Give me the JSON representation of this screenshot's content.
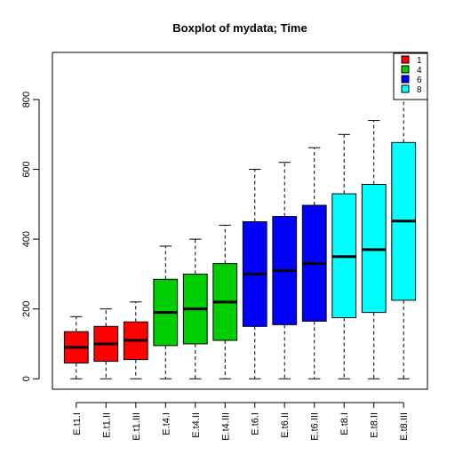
{
  "chart_data": {
    "type": "boxplot",
    "title": "Boxplot of mydata; Time",
    "xlabel": "",
    "ylabel": "",
    "ylim": [
      -30,
      935
    ],
    "yticks": [
      0,
      200,
      400,
      600,
      800
    ],
    "grid": false,
    "legend": {
      "placement": "top-right",
      "entries": [
        {
          "label": "1",
          "color": "#ff0000"
        },
        {
          "label": "4",
          "color": "#00cd00"
        },
        {
          "label": "6",
          "color": "#0000ff"
        },
        {
          "label": "8",
          "color": "#00ffff"
        }
      ]
    },
    "boxes": [
      {
        "label": "E.t1.I",
        "group": "1",
        "color": "#ff0000",
        "min": 0,
        "q1": 45,
        "median": 90,
        "q3": 135,
        "max": 178
      },
      {
        "label": "E.t1.II",
        "group": "1",
        "color": "#ff0000",
        "min": 0,
        "q1": 50,
        "median": 100,
        "q3": 150,
        "max": 200
      },
      {
        "label": "E.t1.III",
        "group": "1",
        "color": "#ff0000",
        "min": 0,
        "q1": 55,
        "median": 110,
        "q3": 163,
        "max": 220
      },
      {
        "label": "E.t4.I",
        "group": "4",
        "color": "#00cd00",
        "min": 0,
        "q1": 95,
        "median": 190,
        "q3": 285,
        "max": 380
      },
      {
        "label": "E.t4.II",
        "group": "4",
        "color": "#00cd00",
        "min": 0,
        "q1": 100,
        "median": 200,
        "q3": 300,
        "max": 400
      },
      {
        "label": "E.t4.III",
        "group": "4",
        "color": "#00cd00",
        "min": 0,
        "q1": 110,
        "median": 220,
        "q3": 330,
        "max": 440
      },
      {
        "label": "E.t6.I",
        "group": "6",
        "color": "#0000ff",
        "min": 0,
        "q1": 150,
        "median": 300,
        "q3": 450,
        "max": 600
      },
      {
        "label": "E.t6.II",
        "group": "6",
        "color": "#0000ff",
        "min": 0,
        "q1": 155,
        "median": 310,
        "q3": 465,
        "max": 620
      },
      {
        "label": "E.t6.III",
        "group": "6",
        "color": "#0000ff",
        "min": 0,
        "q1": 165,
        "median": 330,
        "q3": 497,
        "max": 662
      },
      {
        "label": "E.t8.I",
        "group": "8",
        "color": "#00ffff",
        "min": 0,
        "q1": 175,
        "median": 350,
        "q3": 530,
        "max": 700
      },
      {
        "label": "E.t8.II",
        "group": "8",
        "color": "#00ffff",
        "min": 0,
        "q1": 190,
        "median": 370,
        "q3": 557,
        "max": 740
      },
      {
        "label": "E.t8.III",
        "group": "8",
        "color": "#00ffff",
        "min": 0,
        "q1": 225,
        "median": 452,
        "q3": 677,
        "max": 900
      }
    ]
  }
}
